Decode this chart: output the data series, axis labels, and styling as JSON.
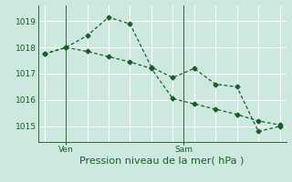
{
  "xlabel": "Pression niveau de la mer( hPa )",
  "bg_color": "#cce8df",
  "grid_color": "#ffffff",
  "line_color": "#1a5c2a",
  "ylim": [
    1014.4,
    1019.6
  ],
  "xlim": [
    -0.3,
    11.3
  ],
  "yticks": [
    1015,
    1016,
    1017,
    1018,
    1019
  ],
  "xtick_positions": [
    1.0,
    6.5
  ],
  "xtick_labels": [
    "Ven",
    "Sam"
  ],
  "vline_positions": [
    1.0,
    6.5
  ],
  "line1_x": [
    0,
    1,
    2,
    3,
    4,
    5,
    6,
    7,
    8,
    9,
    10,
    11
  ],
  "line1_y": [
    1017.75,
    1018.0,
    1018.45,
    1019.15,
    1018.9,
    1017.25,
    1016.85,
    1017.2,
    1016.6,
    1016.5,
    1014.8,
    1015.0
  ],
  "line2_x": [
    0,
    1,
    2,
    3,
    4,
    5,
    6,
    7,
    8,
    9,
    10,
    11
  ],
  "line2_y": [
    1017.75,
    1018.0,
    1017.85,
    1017.65,
    1017.45,
    1017.2,
    1016.05,
    1015.85,
    1015.65,
    1015.45,
    1015.2,
    1015.05
  ],
  "marker": "D",
  "marker_size": 2.5,
  "line_width": 0.9,
  "xlabel_fontsize": 8,
  "tick_fontsize": 6.5,
  "tick_color": "#1a5c2a",
  "axis_color": "#336633",
  "num_xgrid": 12
}
